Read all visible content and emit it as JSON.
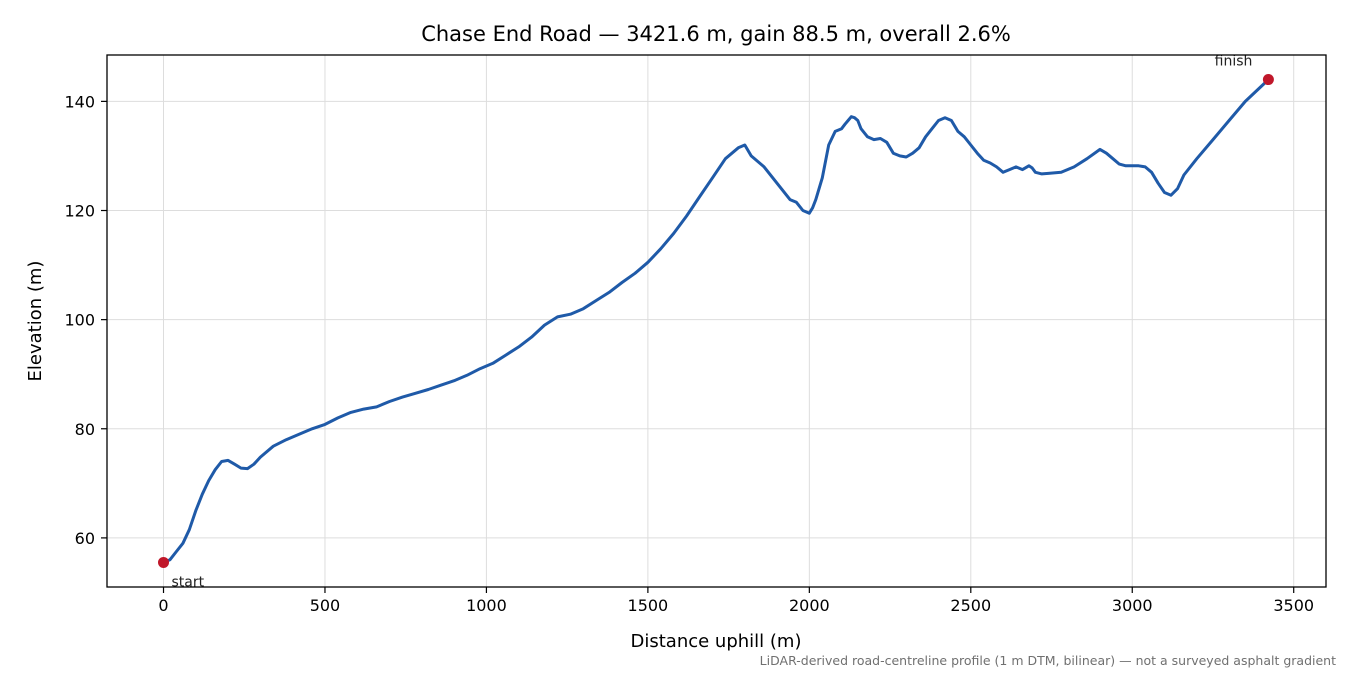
{
  "chart_data": {
    "type": "line",
    "title": "Chase End Road — 3421.6 m, gain 88.5 m, overall 2.6%",
    "xlabel": "Distance uphill (m)",
    "ylabel": "Elevation (m)",
    "xlim": [
      -175,
      3600
    ],
    "ylim": [
      51,
      148.5
    ],
    "xticks": [
      0,
      500,
      1000,
      1500,
      2000,
      2500,
      3000,
      3500
    ],
    "yticks": [
      60,
      80,
      100,
      120,
      140
    ],
    "grid": true,
    "line_color": "#1f5aa8",
    "marker_color": "#c0172a",
    "series": [
      {
        "x": [
          0,
          20,
          40,
          60,
          80,
          100,
          120,
          140,
          160,
          180,
          200,
          220,
          240,
          260,
          280,
          300,
          340,
          380,
          420,
          460,
          500,
          540,
          580,
          620,
          660,
          700,
          740,
          780,
          820,
          860,
          900,
          940,
          980,
          1020,
          1060,
          1100,
          1140,
          1180,
          1220,
          1260,
          1300,
          1340,
          1380,
          1420,
          1460,
          1500,
          1540,
          1580,
          1620,
          1660,
          1700,
          1740,
          1780,
          1800,
          1820,
          1860,
          1900,
          1940,
          1960,
          1980,
          2000,
          2010,
          2020,
          2040,
          2060,
          2080,
          2100,
          2110,
          2120,
          2130,
          2140,
          2150,
          2160,
          2180,
          2200,
          2220,
          2240,
          2260,
          2280,
          2300,
          2320,
          2340,
          2360,
          2380,
          2400,
          2420,
          2440,
          2460,
          2480,
          2500,
          2520,
          2540,
          2560,
          2580,
          2600,
          2620,
          2640,
          2660,
          2680,
          2690,
          2700,
          2720,
          2740,
          2780,
          2820,
          2860,
          2900,
          2920,
          2940,
          2960,
          2980,
          3000,
          3020,
          3040,
          3060,
          3080,
          3100,
          3120,
          3140,
          3160,
          3200,
          3250,
          3300,
          3350,
          3421.6
        ],
        "y": [
          55.5,
          56.0,
          57.5,
          59.0,
          61.5,
          65.0,
          68.0,
          70.5,
          72.5,
          74.0,
          74.2,
          73.5,
          72.8,
          72.7,
          73.5,
          74.8,
          76.8,
          78.0,
          79.0,
          80.0,
          80.8,
          82.0,
          83.0,
          83.6,
          84.0,
          85.0,
          85.8,
          86.5,
          87.2,
          88.0,
          88.8,
          89.8,
          91.0,
          92.0,
          93.5,
          95.0,
          96.8,
          99.0,
          100.5,
          101.0,
          102.0,
          103.5,
          105.0,
          106.8,
          108.5,
          110.5,
          113.0,
          115.8,
          119.0,
          122.5,
          126.0,
          129.5,
          131.5,
          132.0,
          130.0,
          128.0,
          125.0,
          122.0,
          121.5,
          120.0,
          119.5,
          120.5,
          122.0,
          126.0,
          132.0,
          134.5,
          135.0,
          135.8,
          136.5,
          137.2,
          137.0,
          136.5,
          135.0,
          133.5,
          133.0,
          133.2,
          132.5,
          130.5,
          130.0,
          129.8,
          130.5,
          131.5,
          133.5,
          135.0,
          136.5,
          137.0,
          136.5,
          134.5,
          133.5,
          132.0,
          130.5,
          129.2,
          128.7,
          128.0,
          127.0,
          127.5,
          128.0,
          127.5,
          128.2,
          127.8,
          127.0,
          126.7,
          126.8,
          127.0,
          128.0,
          129.5,
          131.2,
          130.5,
          129.5,
          128.5,
          128.2,
          128.2,
          128.2,
          128.0,
          127.0,
          125.0,
          123.3,
          122.8,
          124.0,
          126.5,
          129.5,
          133.0,
          136.5,
          140.0,
          144.0
        ]
      }
    ],
    "points": [
      {
        "label": "start",
        "x": 0,
        "y": 55.5
      },
      {
        "label": "finish",
        "x": 3421.6,
        "y": 144.0
      }
    ],
    "footnote": "LiDAR-derived road-centreline profile (1 m DTM, bilinear) — not a surveyed asphalt gradient"
  }
}
